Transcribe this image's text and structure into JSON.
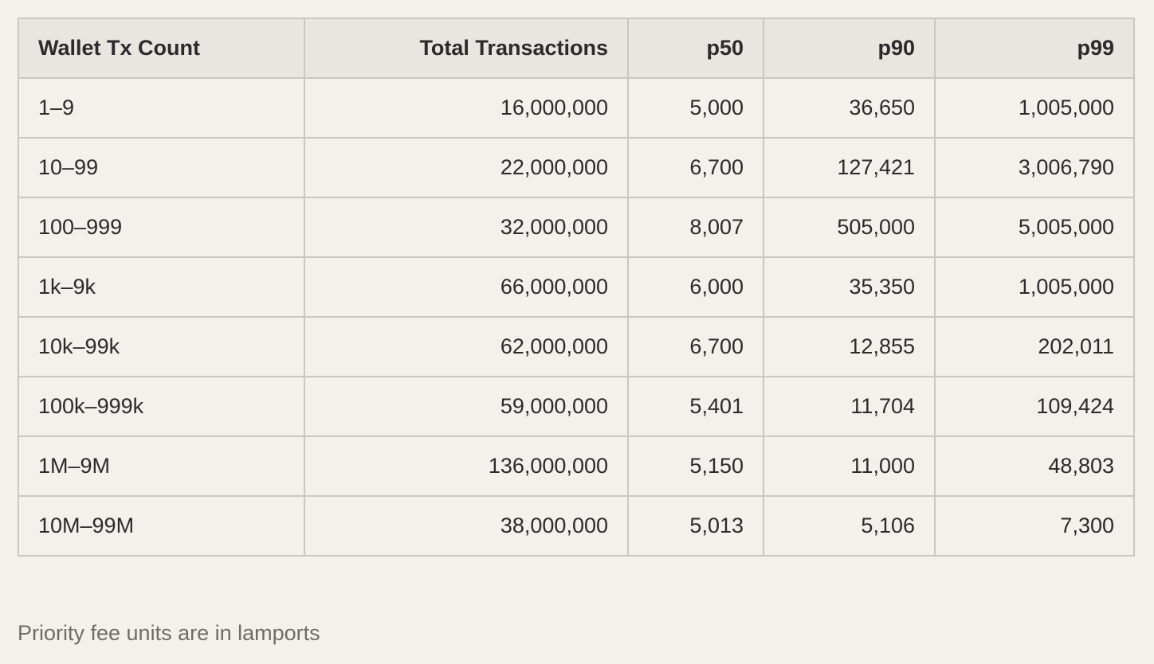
{
  "table": {
    "headers": [
      "Wallet Tx Count",
      "Total Transactions",
      "p50",
      "p90",
      "p99"
    ],
    "rows": [
      [
        "1–9",
        "16,000,000",
        "5,000",
        "36,650",
        "1,005,000"
      ],
      [
        "10–99",
        "22,000,000",
        "6,700",
        "127,421",
        "3,006,790"
      ],
      [
        "100–999",
        "32,000,000",
        "8,007",
        "505,000",
        "5,005,000"
      ],
      [
        "1k–9k",
        "66,000,000",
        "6,000",
        "35,350",
        "1,005,000"
      ],
      [
        "10k–99k",
        "62,000,000",
        "6,700",
        "12,855",
        "202,011"
      ],
      [
        "100k–999k",
        "59,000,000",
        "5,401",
        "11,704",
        "109,424"
      ],
      [
        "1M–9M",
        "136,000,000",
        "5,150",
        "11,000",
        "48,803"
      ],
      [
        "10M–99M",
        "38,000,000",
        "5,013",
        "5,106",
        "7,300"
      ]
    ]
  },
  "footnote": "Priority fee units are in lamports",
  "colors": {
    "background": "#f3f1eb",
    "header_background": "#e8e6e0",
    "border": "#c9c7c1",
    "text": "#2b2b2b",
    "footnote_text": "#6f6d69"
  }
}
